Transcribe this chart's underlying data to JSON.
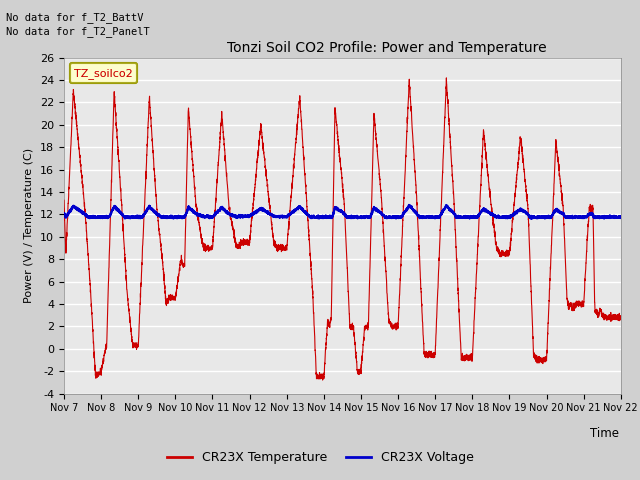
{
  "title": "Tonzi Soil CO2 Profile: Power and Temperature",
  "ylabel": "Power (V) / Temperature (C)",
  "xlabel": "Time",
  "top_left_text1": "No data for f_T2_BattV",
  "top_left_text2": "No data for f_T2_PanelT",
  "legend_box_label": "TZ_soilco2",
  "ylim": [
    -4,
    26
  ],
  "xlim": [
    0,
    15
  ],
  "yticks": [
    -4,
    -2,
    0,
    2,
    4,
    6,
    8,
    10,
    12,
    14,
    16,
    18,
    20,
    22,
    24,
    26
  ],
  "xtick_positions": [
    0,
    1,
    2,
    3,
    4,
    5,
    6,
    7,
    8,
    9,
    10,
    11,
    12,
    13,
    14,
    15
  ],
  "xtick_labels": [
    "Nov 7",
    "Nov 8",
    "Nov 9",
    "Nov 10",
    "Nov 11",
    "Nov 12",
    "Nov 13",
    "Nov 14",
    "Nov 15",
    "Nov 16",
    "Nov 17",
    "Nov 18",
    "Nov 19",
    "Nov 20",
    "Nov 21",
    "Nov 22"
  ],
  "fig_bg_color": "#d0d0d0",
  "plot_bg_color": "#e8e8e8",
  "grid_color": "#ffffff",
  "red_color": "#cc0000",
  "blue_color": "#0000cc",
  "legend_label1": "CR23X Temperature",
  "legend_label2": "CR23X Voltage",
  "legend_box_facecolor": "#ffffcc",
  "legend_box_edgecolor": "#999900"
}
